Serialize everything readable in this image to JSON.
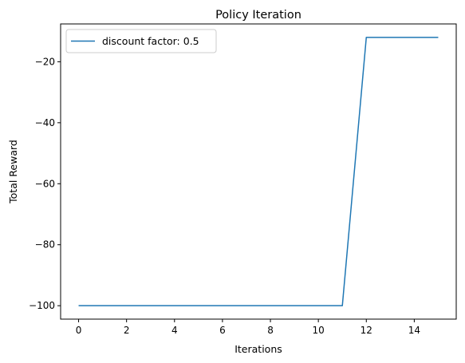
{
  "chart_data": {
    "type": "line",
    "title": "Policy Iteration",
    "xlabel": "Iterations",
    "ylabel": "Total Reward",
    "xlim": [
      -0.75,
      15.75
    ],
    "ylim": [
      -104.4,
      -7.6
    ],
    "xticks": [
      0,
      2,
      4,
      6,
      8,
      10,
      12,
      14
    ],
    "yticks": [
      -100,
      -80,
      -60,
      -40,
      -20
    ],
    "ytick_labels": [
      "−100",
      "−80",
      "−60",
      "−40",
      "−20"
    ],
    "grid": false,
    "legend_position": "upper-left",
    "series": [
      {
        "name": "discount factor: 0.5",
        "color": "#1f77b4",
        "x": [
          0,
          1,
          2,
          3,
          4,
          5,
          6,
          7,
          8,
          9,
          10,
          11,
          12,
          13,
          14,
          15
        ],
        "y": [
          -100,
          -100,
          -100,
          -100,
          -100,
          -100,
          -100,
          -100,
          -100,
          -100,
          -100,
          -100,
          -12,
          -12,
          -12,
          -12
        ]
      }
    ]
  }
}
